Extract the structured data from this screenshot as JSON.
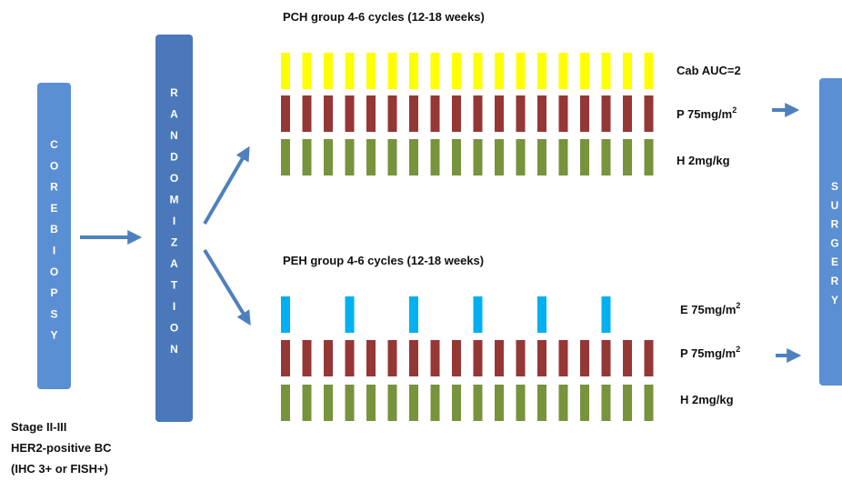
{
  "colors": {
    "box_light": "#5b8fd3",
    "box_dark": "#4a78ba",
    "arrow": "#4e80bd",
    "carboplatin": "#ffff00",
    "paclitaxel": "#953735",
    "trastuzumab": "#77933c",
    "epirubicin": "#00b0f0"
  },
  "boxes": {
    "core_biopsy": "COREBIOPSY",
    "randomization": "RANDOMIZATION",
    "surgery": "SURGERY"
  },
  "groups": {
    "pch": {
      "title": "PCH group 4-6 cycles (12-18 weeks)",
      "rows": [
        {
          "drug": "carboplatin",
          "label": "Cab AUC=2",
          "sup": "",
          "bars": 18
        },
        {
          "drug": "paclitaxel",
          "label": "P 75mg/m",
          "sup": "2",
          "bars": 18
        },
        {
          "drug": "trastuzumab",
          "label": "H 2mg/kg",
          "sup": "",
          "bars": 18
        }
      ]
    },
    "peh": {
      "title": "PEH group 4-6 cycles (12-18 weeks)",
      "rows": [
        {
          "drug": "epirubicin",
          "label": "E 75mg/m",
          "sup": "2",
          "bars": 6
        },
        {
          "drug": "paclitaxel",
          "label": "P 75mg/m",
          "sup": "2",
          "bars": 18
        },
        {
          "drug": "trastuzumab",
          "label": "H 2mg/kg",
          "sup": "",
          "bars": 18
        }
      ]
    }
  },
  "stage": {
    "line1": "Stage II-III",
    "line2": "HER2-positive BC",
    "line3": "(IHC 3+ or FISH+)"
  }
}
